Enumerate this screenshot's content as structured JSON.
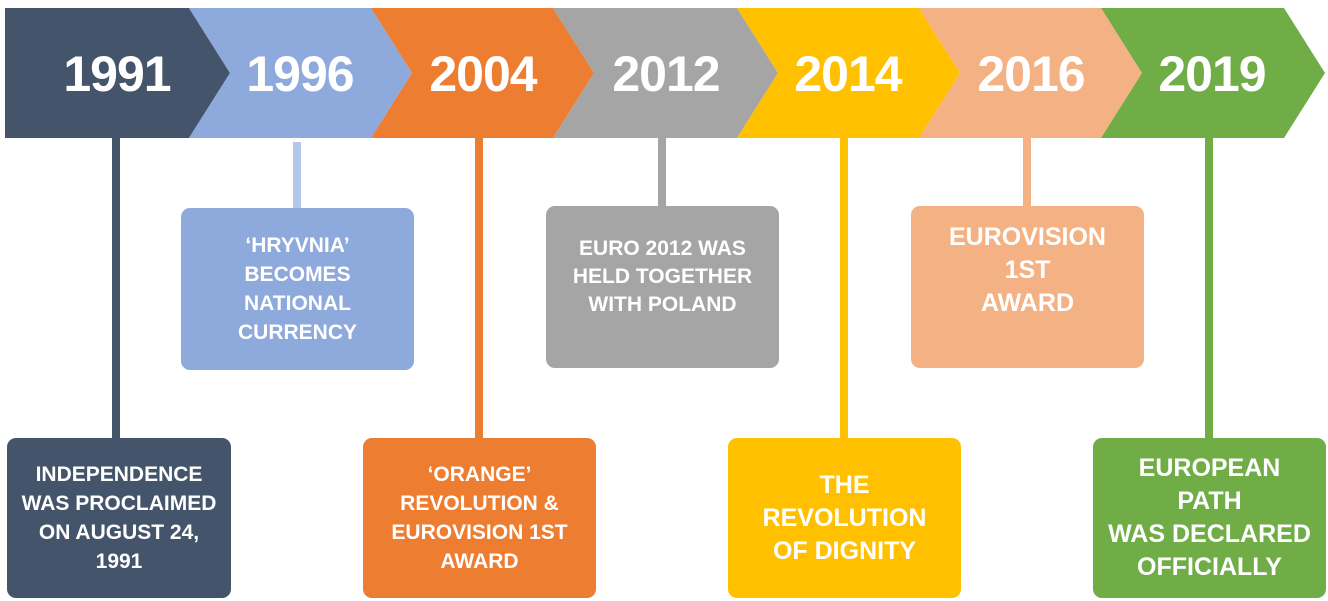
{
  "colors": {
    "1991": "#44546A",
    "1996": "#8EA9DB",
    "1996_connector": "#B4C7E7",
    "2004": "#ED7D31",
    "2012": "#A5A5A5",
    "2014": "#FFC000",
    "2016": "#F4B183",
    "2019": "#70AD47"
  },
  "timeline": [
    {
      "year": "1991",
      "event": "INDEPENDENCE\nWAS PROCLAIMED\nON AUGUST 24,\n1991"
    },
    {
      "year": "1996",
      "event": "‘HRYVNIA’\nBECOMES\nNATIONAL\nCURRENCY"
    },
    {
      "year": "2004",
      "event": "‘ORANGE’\nREVOLUTION &\nEUROVISION 1ST\nAWARD"
    },
    {
      "year": "2012",
      "event": "EURO 2012 WAS\nHELD TOGETHER\nWITH POLAND"
    },
    {
      "year": "2014",
      "event": "THE REVOLUTION\nOF DIGNITY"
    },
    {
      "year": "2016",
      "event": "EUROVISION 1ST\nAWARD"
    },
    {
      "year": "2019",
      "event": "EUROPEAN PATH\nWAS DECLARED\nOFFICIALLY"
    }
  ]
}
